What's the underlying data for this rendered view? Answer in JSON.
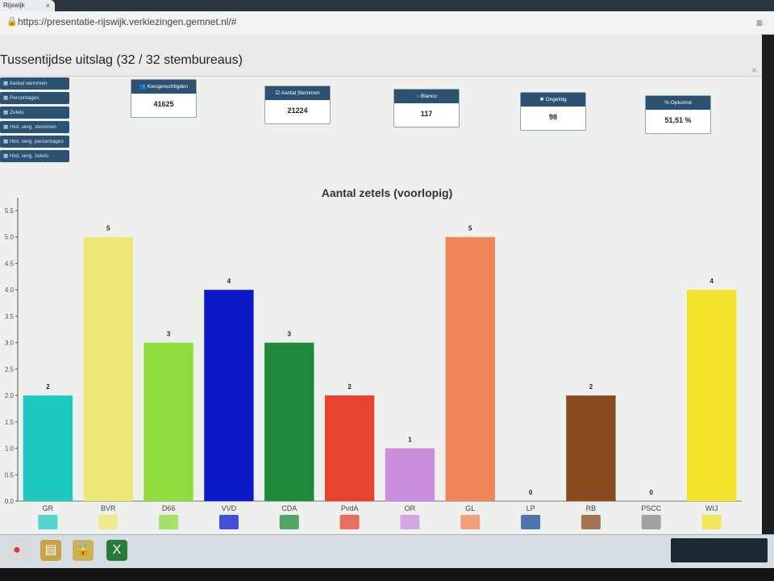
{
  "browser": {
    "tab_title": "Rijswijk",
    "tab_close": "×",
    "url": "https://presentatie-rijswijk.verkiezingen.gemnet.nl/#"
  },
  "page": {
    "title": "Tussentijdse uitslag (32 / 32 stembureaus)",
    "close": "×"
  },
  "menu": [
    {
      "label": "Aantal stemmen"
    },
    {
      "label": "Percentages"
    },
    {
      "label": "Zetels"
    },
    {
      "label": "Hist. verg. stemmen"
    },
    {
      "label": "Hist. verg. percentages"
    },
    {
      "label": "Hist. verg. zetels"
    }
  ],
  "stats": [
    {
      "label": "Kiesgerechtigden",
      "value": "41625"
    },
    {
      "label": "Aantal Stemmen",
      "value": "21224"
    },
    {
      "label": "Blanco",
      "value": "117"
    },
    {
      "label": "Ongeldig",
      "value": "98"
    },
    {
      "label": "% Opkomst",
      "value": "51,51 %"
    }
  ],
  "chart_data": {
    "type": "bar",
    "title": "Aantal zetels (voorlopig)",
    "xlabel": "",
    "ylabel": "",
    "ylim": [
      0,
      5.5
    ],
    "yticks": [
      "0.0",
      "0.5",
      "1.0",
      "1.5",
      "2.0",
      "2.5",
      "3.0",
      "3.5",
      "4.0",
      "4.5",
      "5.0",
      "5.5"
    ],
    "categories": [
      "GR",
      "BVR",
      "D66",
      "VVD",
      "CDA",
      "PvdA",
      "OR",
      "GL",
      "LP",
      "RB",
      "PSCC",
      "WIJ"
    ],
    "values": [
      2,
      5,
      3,
      4,
      3,
      2,
      1,
      5,
      0,
      2,
      0,
      4
    ],
    "colors": [
      "#1ec9c1",
      "#ede574",
      "#8fdc3c",
      "#0a1acb",
      "#1e8a3a",
      "#e8432d",
      "#c98fdc",
      "#f0855a",
      "#1a4c9a",
      "#8a4a20",
      "#888888",
      "#f3e22c"
    ],
    "grid": false,
    "legend": "none"
  },
  "taskbar": {
    "apps": [
      "chrome-icon",
      "explorer-icon",
      "lock-icon",
      "excel-icon"
    ]
  }
}
